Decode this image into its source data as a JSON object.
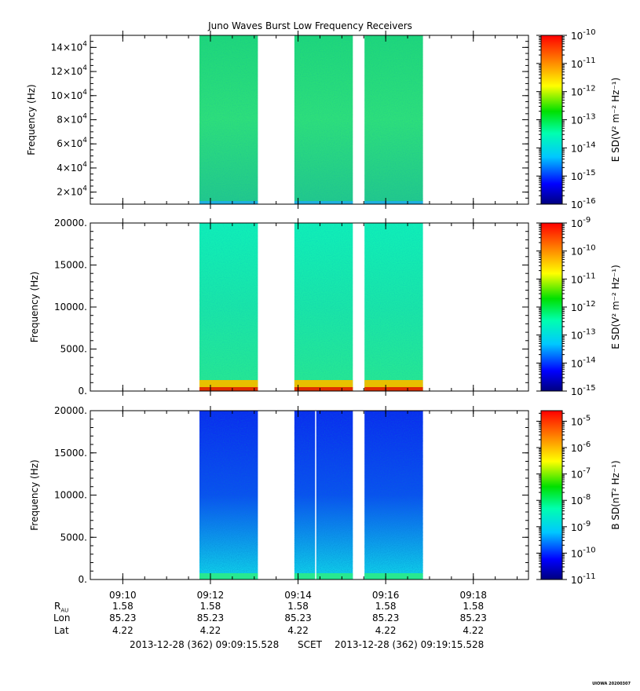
{
  "chart_data": {
    "type": "heatmap",
    "title": "Juno Waves Burst Low Frequency Receivers",
    "time_ticks": [
      "09:10",
      "09:12",
      "09:14",
      "09:16",
      "09:18"
    ],
    "time_range": [
      "09:09:15.528",
      "09:19:15.528"
    ],
    "data_blocks": [
      {
        "start": "09:11:45",
        "end": "09:13:05"
      },
      {
        "start": "09:13:55",
        "end": "09:15:15"
      },
      {
        "start": "09:15:31",
        "end": "09:16:51"
      }
    ],
    "panels": [
      {
        "ylabel": "Frequency (Hz)",
        "ylim": [
          10000,
          150000
        ],
        "yticks": [
          {
            "value": 20000,
            "label": "2×10",
            "exp": "4"
          },
          {
            "value": 40000,
            "label": "4×10",
            "exp": "4"
          },
          {
            "value": 60000,
            "label": "6×10",
            "exp": "4"
          },
          {
            "value": 80000,
            "label": "8×10",
            "exp": "4"
          },
          {
            "value": 100000,
            "label": "10×10",
            "exp": "4"
          },
          {
            "value": 120000,
            "label": "12×10",
            "exp": "4"
          },
          {
            "value": 140000,
            "label": "14×10",
            "exp": "4"
          }
        ],
        "colorbar_label": "E SD",
        "colorbar_unit": "(V² m⁻² Hz⁻¹)",
        "colorbar_ticks": [
          "-10",
          "-11",
          "-12",
          "-13",
          "-14",
          "-15",
          "-16"
        ],
        "colorbar_range_log": [
          -16,
          -10
        ],
        "color_stops": [
          "#1fd87a",
          "#2ee07a",
          "#22c98c"
        ],
        "bottom_band": "#1fb0e0"
      },
      {
        "ylabel": "Frequency (Hz)",
        "ylim": [
          0,
          20000
        ],
        "yticks": [
          {
            "value": 0,
            "label": "0."
          },
          {
            "value": 5000,
            "label": "5000."
          },
          {
            "value": 10000,
            "label": "10000."
          },
          {
            "value": 15000,
            "label": "15000."
          },
          {
            "value": 20000,
            "label": "20000."
          }
        ],
        "colorbar_label": "E SD",
        "colorbar_unit": "(V² m⁻² Hz⁻¹)",
        "colorbar_ticks": [
          "-9",
          "-10",
          "-11",
          "-12",
          "-13",
          "-14",
          "-15"
        ],
        "colorbar_range_log": [
          -15,
          -9
        ],
        "color_stops": [
          "#10f0b8",
          "#1ae6a8",
          "#28e890"
        ],
        "bottom_band": "#e8c000"
      },
      {
        "ylabel": "Frequency (Hz)",
        "ylim": [
          0,
          20000
        ],
        "yticks": [
          {
            "value": 0,
            "label": "0."
          },
          {
            "value": 5000,
            "label": "5000."
          },
          {
            "value": 10000,
            "label": "10000."
          },
          {
            "value": 15000,
            "label": "15000."
          },
          {
            "value": 20000,
            "label": "20000."
          }
        ],
        "colorbar_label": "B SD",
        "colorbar_unit": "(nT² Hz⁻¹)",
        "colorbar_ticks": [
          "-5",
          "-6",
          "-7",
          "-8",
          "-9",
          "-10",
          "-11"
        ],
        "colorbar_range_log": [
          -11,
          -4.6
        ],
        "color_stops": [
          "#0a2af0",
          "#0a50f0",
          "#10d8e8"
        ],
        "bottom_band": "#28e890"
      }
    ],
    "colorbar_base": "10"
  },
  "ephemeris": {
    "labels": [
      {
        "main": "R",
        "sub": "AU"
      },
      {
        "main": "Lon",
        "sub": ""
      },
      {
        "main": "Lat",
        "sub": ""
      }
    ],
    "columns": [
      {
        "r": "1.58",
        "lon": "85.23",
        "lat": "4.22"
      },
      {
        "r": "1.58",
        "lon": "85.23",
        "lat": "4.22"
      },
      {
        "r": "1.58",
        "lon": "85.23",
        "lat": "4.22"
      },
      {
        "r": "1.58",
        "lon": "85.23",
        "lat": "4.22"
      },
      {
        "r": "1.58",
        "lon": "85.23",
        "lat": "4.22"
      }
    ]
  },
  "footer": {
    "start": "2013-12-28 (362) 09:09:15.528",
    "scet": "SCET",
    "end": "2013-12-28 (362) 09:19:15.528"
  },
  "credit": "UIOWA 20200307"
}
